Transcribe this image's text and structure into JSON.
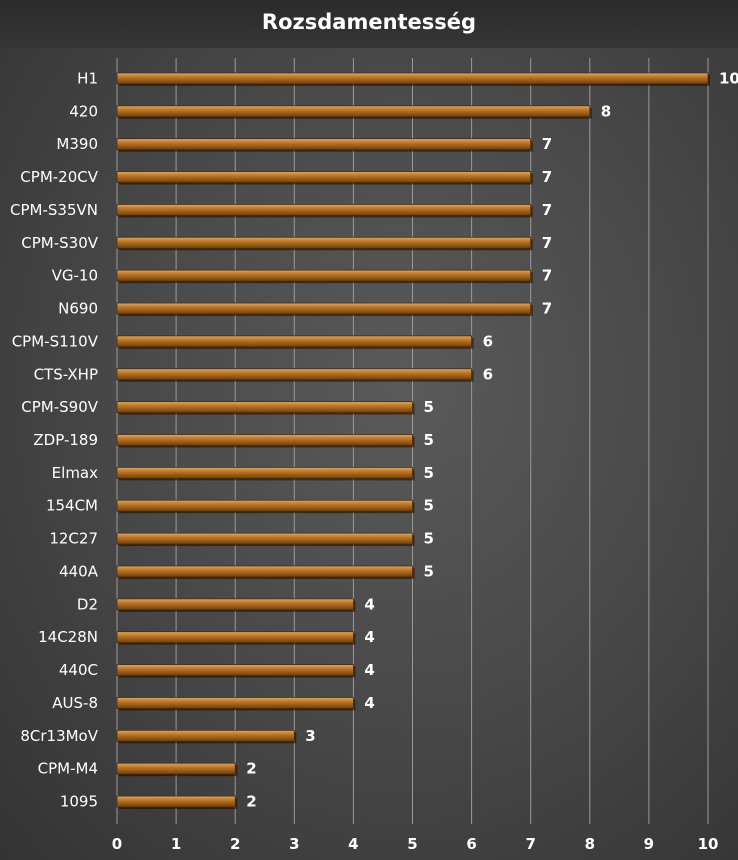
{
  "chart_data": {
    "type": "bar",
    "orientation": "horizontal",
    "title": "Rozsdamentesség",
    "categories": [
      "H1",
      "420",
      "M390",
      "CPM-20CV",
      "CPM-S35VN",
      "CPM-S30V",
      "VG-10",
      "N690",
      "CPM-S110V",
      "CTS-XHP",
      "CPM-S90V",
      "ZDP-189",
      "Elmax",
      "154CM",
      "12C27",
      "440A",
      "D2",
      "14C28N",
      "440C",
      "AUS-8",
      "8Cr13MoV",
      "CPM-M4",
      "1095"
    ],
    "values": [
      10,
      8,
      7,
      7,
      7,
      7,
      7,
      7,
      6,
      6,
      5,
      5,
      5,
      5,
      5,
      5,
      4,
      4,
      4,
      4,
      3,
      2,
      2
    ],
    "xlim": [
      0,
      10
    ],
    "xticks": [
      0,
      1,
      2,
      3,
      4,
      5,
      6,
      7,
      8,
      9,
      10
    ],
    "xlabel": "",
    "ylabel": "",
    "grid": true,
    "data_labels": true,
    "bar_color": "#c07a2a",
    "bar_highlight": "#e8a64f",
    "bar_shadow": "#6e3f0e",
    "background_color": "#4a4a4a",
    "grid_color": "#9a9a9a"
  }
}
